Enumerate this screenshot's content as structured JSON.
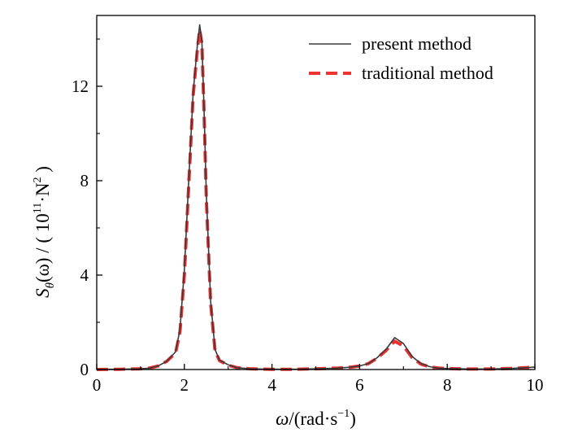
{
  "chart_data": {
    "type": "line",
    "xlabel": {
      "symbol": "ω",
      "text": "/(rad·s",
      "sup": "−1",
      "close": ")"
    },
    "ylabel": {
      "symbol": "S",
      "sub": "θ",
      "mid": "(ω) / ( 10",
      "sup1": "11",
      "mid2": "·N",
      "sup2": "2",
      "close": " )"
    },
    "xlim": [
      0,
      10
    ],
    "ylim": [
      0,
      15
    ],
    "xticks": [
      0,
      2,
      4,
      6,
      8,
      10
    ],
    "yticks": [
      0,
      4,
      8,
      12
    ],
    "xtick_labels": [
      "0",
      "2",
      "4",
      "6",
      "8",
      "10"
    ],
    "ytick_labels": [
      "0",
      "4",
      "8",
      "12"
    ],
    "grid": false,
    "legend_position": "top-right",
    "series": [
      {
        "name": "present method",
        "color": "#3a3a3a",
        "style": "solid",
        "x": [
          0,
          0.5,
          1.0,
          1.2,
          1.4,
          1.6,
          1.8,
          1.9,
          2.0,
          2.1,
          2.2,
          2.3,
          2.35,
          2.4,
          2.45,
          2.5,
          2.6,
          2.7,
          2.8,
          3.0,
          3.2,
          3.5,
          4.0,
          4.5,
          5.0,
          5.5,
          5.8,
          6.0,
          6.2,
          6.4,
          6.6,
          6.8,
          7.0,
          7.2,
          7.4,
          7.6,
          7.8,
          8.0,
          8.5,
          9.0,
          9.5,
          10.0
        ],
        "y": [
          0,
          0.01,
          0.03,
          0.06,
          0.15,
          0.35,
          0.75,
          1.7,
          4.2,
          8.0,
          11.7,
          13.8,
          14.6,
          13.9,
          11.0,
          7.5,
          2.9,
          0.85,
          0.4,
          0.2,
          0.08,
          0.03,
          0.01,
          0.01,
          0.03,
          0.06,
          0.1,
          0.15,
          0.25,
          0.5,
          0.85,
          1.35,
          1.1,
          0.55,
          0.25,
          0.12,
          0.06,
          0.04,
          0.02,
          0.02,
          0.05,
          0.1
        ]
      },
      {
        "name": "traditional method",
        "color": "#ee3333",
        "style": "dashed",
        "x": [
          0,
          0.5,
          1.0,
          1.2,
          1.4,
          1.6,
          1.8,
          1.9,
          2.0,
          2.1,
          2.2,
          2.3,
          2.35,
          2.4,
          2.45,
          2.5,
          2.6,
          2.7,
          2.8,
          3.0,
          3.2,
          3.5,
          4.0,
          4.5,
          5.0,
          5.5,
          5.8,
          6.0,
          6.2,
          6.4,
          6.6,
          6.8,
          7.0,
          7.2,
          7.4,
          7.6,
          7.8,
          8.0,
          8.5,
          9.0,
          9.5,
          10.0
        ],
        "y": [
          0,
          0.01,
          0.03,
          0.06,
          0.15,
          0.35,
          0.7,
          1.6,
          4.0,
          7.8,
          11.6,
          13.6,
          14.4,
          13.8,
          10.9,
          7.3,
          2.8,
          0.8,
          0.38,
          0.18,
          0.08,
          0.03,
          0.01,
          0.01,
          0.03,
          0.06,
          0.1,
          0.15,
          0.25,
          0.48,
          0.8,
          1.2,
          1.0,
          0.5,
          0.23,
          0.11,
          0.06,
          0.04,
          0.02,
          0.02,
          0.05,
          0.1
        ]
      }
    ]
  }
}
